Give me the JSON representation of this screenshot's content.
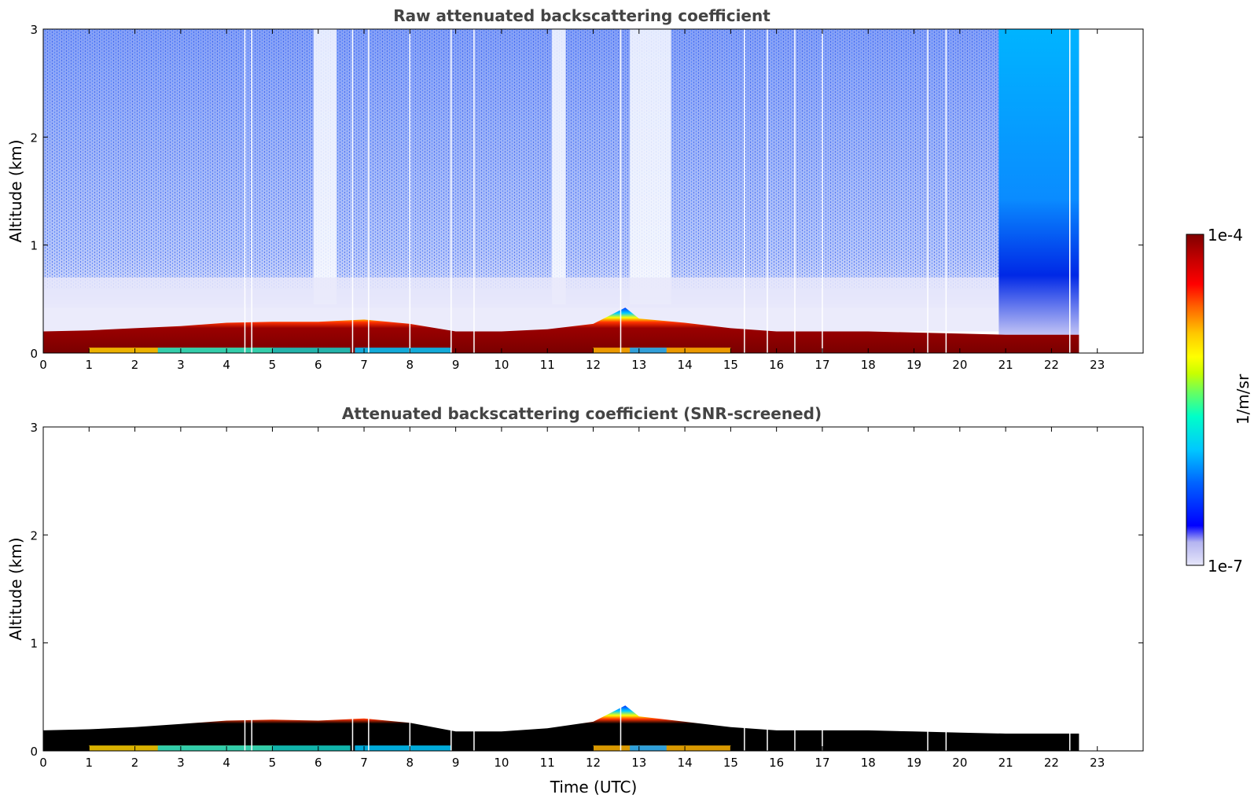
{
  "chart_data": [
    {
      "type": "heatmap",
      "title": "Raw attenuated backscattering coefficient",
      "xlabel": "",
      "ylabel": "Altitude (km)",
      "xlim": [
        0,
        24
      ],
      "ylim": [
        0,
        3
      ],
      "x_ticks": [
        "0",
        "1",
        "2",
        "3",
        "4",
        "5",
        "6",
        "7",
        "8",
        "9",
        "10",
        "11",
        "12",
        "13",
        "14",
        "15",
        "16",
        "17",
        "18",
        "19",
        "20",
        "21",
        "22",
        "23"
      ],
      "y_ticks": [
        "0",
        "1",
        "2",
        "3"
      ],
      "data_end_hour": 22.6,
      "boundary_layer_top_km": [
        {
          "t": 0,
          "z": 0.2
        },
        {
          "t": 1,
          "z": 0.21
        },
        {
          "t": 2,
          "z": 0.23
        },
        {
          "t": 3,
          "z": 0.25
        },
        {
          "t": 4,
          "z": 0.28
        },
        {
          "t": 5,
          "z": 0.29
        },
        {
          "t": 6,
          "z": 0.29
        },
        {
          "t": 7,
          "z": 0.31
        },
        {
          "t": 8,
          "z": 0.27
        },
        {
          "t": 9,
          "z": 0.2
        },
        {
          "t": 10,
          "z": 0.2
        },
        {
          "t": 11,
          "z": 0.22
        },
        {
          "t": 12,
          "z": 0.27
        },
        {
          "t": 12.7,
          "z": 0.42
        },
        {
          "t": 13,
          "z": 0.32
        },
        {
          "t": 14,
          "z": 0.28
        },
        {
          "t": 15,
          "z": 0.23
        },
        {
          "t": 16,
          "z": 0.2
        },
        {
          "t": 17,
          "z": 0.2
        },
        {
          "t": 18,
          "z": 0.2
        },
        {
          "t": 19,
          "z": 0.19
        },
        {
          "t": 20,
          "z": 0.18
        },
        {
          "t": 21,
          "z": 0.17
        },
        {
          "t": 22,
          "z": 0.17
        },
        {
          "t": 22.6,
          "z": 0.17
        }
      ],
      "noise_level": true
    },
    {
      "type": "heatmap",
      "title": "Attenuated backscattering coefficient (SNR-screened)",
      "xlabel": "Time (UTC)",
      "ylabel": "Altitude (km)",
      "xlim": [
        0,
        24
      ],
      "ylim": [
        0,
        3
      ],
      "x_ticks": [
        "0",
        "1",
        "2",
        "3",
        "4",
        "5",
        "6",
        "7",
        "8",
        "9",
        "10",
        "11",
        "12",
        "13",
        "14",
        "15",
        "16",
        "17",
        "18",
        "19",
        "20",
        "21",
        "22",
        "23"
      ],
      "y_ticks": [
        "0",
        "1",
        "2",
        "3"
      ],
      "data_end_hour": 22.6,
      "boundary_layer_top_km": [
        {
          "t": 0,
          "z": 0.19
        },
        {
          "t": 1,
          "z": 0.2
        },
        {
          "t": 2,
          "z": 0.22
        },
        {
          "t": 3,
          "z": 0.25
        },
        {
          "t": 4,
          "z": 0.28
        },
        {
          "t": 5,
          "z": 0.29
        },
        {
          "t": 6,
          "z": 0.28
        },
        {
          "t": 7,
          "z": 0.3
        },
        {
          "t": 8,
          "z": 0.26
        },
        {
          "t": 9,
          "z": 0.18
        },
        {
          "t": 10,
          "z": 0.18
        },
        {
          "t": 11,
          "z": 0.21
        },
        {
          "t": 12,
          "z": 0.27
        },
        {
          "t": 12.7,
          "z": 0.42
        },
        {
          "t": 13,
          "z": 0.32
        },
        {
          "t": 14,
          "z": 0.27
        },
        {
          "t": 15,
          "z": 0.22
        },
        {
          "t": 16,
          "z": 0.19
        },
        {
          "t": 17,
          "z": 0.19
        },
        {
          "t": 18,
          "z": 0.19
        },
        {
          "t": 19,
          "z": 0.18
        },
        {
          "t": 20,
          "z": 0.17
        },
        {
          "t": 21,
          "z": 0.16
        },
        {
          "t": 22,
          "z": 0.16
        },
        {
          "t": 22.6,
          "z": 0.16
        }
      ],
      "noise_level": false
    }
  ],
  "colorbar": {
    "label": "1/m/sr",
    "max_label": "1e-4",
    "min_label": "1e-7",
    "colors": [
      "#e6e6fa",
      "#b4b4f0",
      "#0000ff",
      "#0064ff",
      "#00c8ff",
      "#00ffc8",
      "#64ff64",
      "#c8ff00",
      "#ffff00",
      "#ffc800",
      "#ff6400",
      "#ff0000",
      "#c80000",
      "#800000"
    ]
  }
}
